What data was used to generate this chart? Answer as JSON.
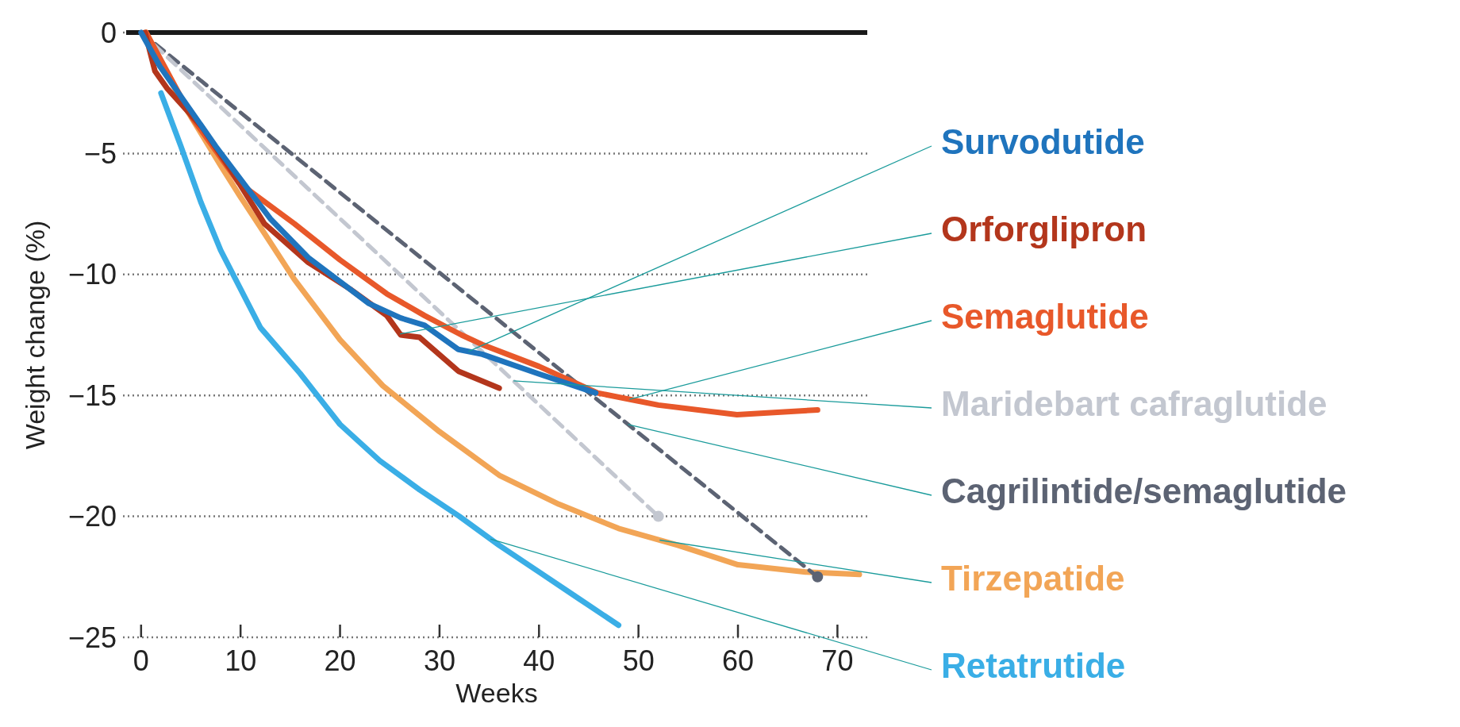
{
  "chart_data": {
    "type": "line",
    "xlabel": "Weeks",
    "ylabel": "Weight change (%)",
    "xlim": [
      -1.5,
      73
    ],
    "xticks": [
      0,
      10,
      20,
      30,
      40,
      50,
      60,
      70
    ],
    "ylim": [
      -25,
      0
    ],
    "yticks": [
      0,
      -5,
      -10,
      -15,
      -20,
      -25
    ],
    "grid": "y",
    "legend": false,
    "marker": "none",
    "ref_lines": [
      {
        "axis": "y",
        "value": 0,
        "color": "#1a1a1a"
      }
    ],
    "series": [
      {
        "name": "Survodutide",
        "color": "#1f74bd",
        "x": [
          0,
          1.9,
          7.5,
          13,
          16.8,
          22.9,
          26.1,
          28.5,
          31.9,
          34.3,
          39.9,
          45.7
        ],
        "values": [
          0,
          -1.4,
          -4.7,
          -7.7,
          -9.3,
          -11.2,
          -11.8,
          -12.1,
          -13.1,
          -13.3,
          -14.1,
          -14.9
        ]
      },
      {
        "name": "Orforglipron",
        "color": "#b3361c",
        "x": [
          0.4,
          1.4,
          2.6,
          6.1,
          8.9,
          12.4,
          16.8,
          21,
          24.7,
          26.1,
          28,
          29.4,
          31.9,
          36
        ],
        "values": [
          0,
          -1.6,
          -2.3,
          -3.9,
          -5.6,
          -7.9,
          -9.5,
          -10.6,
          -11.7,
          -12.5,
          -12.6,
          -13.1,
          -14,
          -14.7
        ]
      },
      {
        "name": "Semaglutide",
        "color": "#e8582a",
        "x": [
          0.5,
          5.1,
          9.8,
          15.4,
          20,
          24.7,
          28.5,
          32.2,
          34.3,
          40,
          45.9,
          52,
          59.9,
          68
        ],
        "values": [
          0,
          -3.5,
          -6.2,
          -7.9,
          -9.4,
          -10.8,
          -11.7,
          -12.5,
          -12.9,
          -13.8,
          -14.9,
          -15.4,
          -15.8,
          -15.6
        ]
      },
      {
        "name": "Maridebart cafraglutide",
        "color": "#c3c7d0",
        "line_style": "dashed",
        "x": [
          0,
          52
        ],
        "values": [
          0,
          -20
        ]
      },
      {
        "name": "Cagrilintide/semaglutide",
        "color": "#5c6373",
        "line_style": "dashed",
        "x": [
          0,
          68
        ],
        "values": [
          0,
          -22.5
        ]
      },
      {
        "name": "Tirzepatide",
        "color": "#f2a556",
        "x": [
          0.5,
          4,
          8,
          10,
          12.4,
          15.4,
          20,
          24.3,
          30,
          36,
          42,
          48,
          54,
          60,
          66.8,
          72.2
        ],
        "values": [
          0,
          -2.8,
          -5.5,
          -6.8,
          -8.3,
          -10.2,
          -12.7,
          -14.6,
          -16.5,
          -18.3,
          -19.5,
          -20.5,
          -21.2,
          -22,
          -22.3,
          -22.4
        ]
      },
      {
        "name": "Retatrutide",
        "color": "#3aaee6",
        "x": [
          2,
          4,
          6,
          8,
          12,
          16,
          20,
          24,
          28,
          32,
          36,
          40,
          44,
          48
        ],
        "values": [
          -2.5,
          -4.7,
          -7,
          -9,
          -12.2,
          -14.1,
          -16.2,
          -17.7,
          -18.9,
          -20,
          -21.2,
          -22.3,
          -23.4,
          -24.5
        ]
      },
      {
        "type": "scatter",
        "color": "#c3c7d0",
        "marker": "circle",
        "x": [
          52
        ],
        "values": [
          -20
        ]
      },
      {
        "type": "scatter",
        "color": "#5c6373",
        "marker": "circle",
        "x": [
          68
        ],
        "values": [
          -22.5
        ]
      }
    ]
  }
}
